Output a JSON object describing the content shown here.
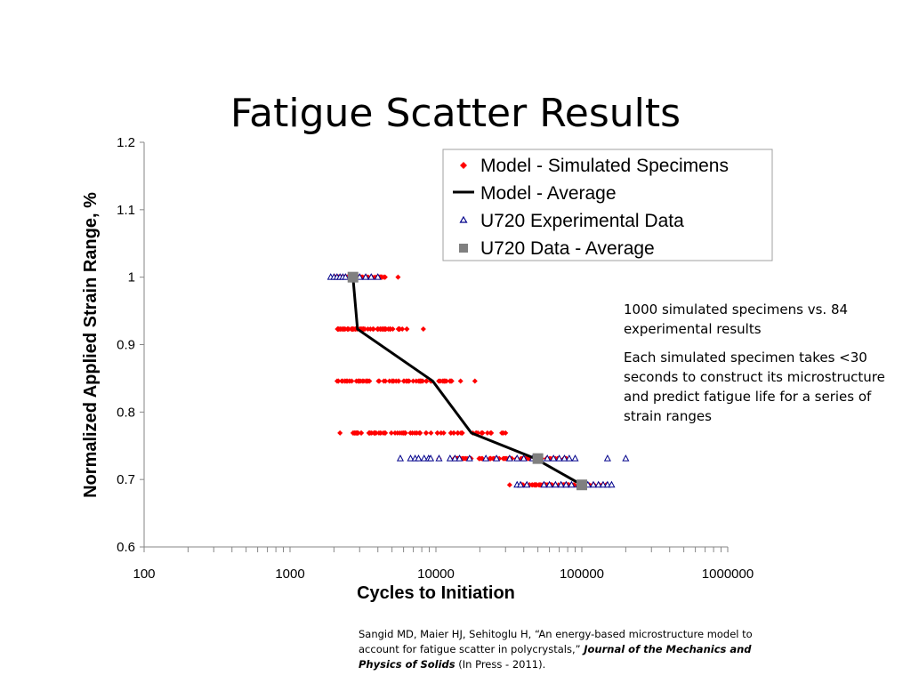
{
  "slide": {
    "title": "Fatigue Scatter Results",
    "notes": [
      "1000 simulated specimens vs. 84 experimental results",
      "Each simulated specimen takes <30 seconds to construct its microstructure and predict fatigue life for a series of strain ranges"
    ],
    "citation": {
      "prefix": "Sangid MD, Maier HJ, Sehitoglu H, “An energy-based microstructure model to account for fatigue scatter in polycrystals,”",
      "journal": "Journal of the Mechanics and Physics of Solids",
      "suffix": "(In Press - 2011)."
    }
  },
  "colors": {
    "model_points": "#ff0000",
    "model_average": "#000000",
    "experimental_points": "#00008b",
    "experimental_average": "#808080"
  },
  "chart_data": {
    "type": "scatter",
    "xlabel": "Cycles to Initiation",
    "ylabel": "Normalized Applied Strain Range, %",
    "x_scale": "log",
    "xlim": [
      100,
      1000000
    ],
    "ylim": [
      0.6,
      1.2
    ],
    "x_ticks": [
      "100",
      "1000",
      "10000",
      "100000",
      "1000000"
    ],
    "y_ticks": [
      "0.6",
      "0.7",
      "0.8",
      "0.9",
      "1",
      "1.1",
      "1.2"
    ],
    "legend_position": "top-right",
    "grid": false,
    "series": [
      {
        "name": "Model - Simulated Specimens",
        "kind": "points",
        "marker": "diamond",
        "groups": [
          {
            "y": 1.0,
            "x_min": 2000,
            "x_max": 4500,
            "outliers": [
              5500
            ]
          },
          {
            "y": 0.923,
            "x_min": 2100,
            "x_max": 6500,
            "outliers": [
              8200
            ]
          },
          {
            "y": 0.846,
            "x_min": 2100,
            "x_max": 15000,
            "outliers": [
              18500
            ]
          },
          {
            "y": 0.769,
            "x_min": 2700,
            "x_max": 33000,
            "outliers": [
              2200,
              3500
            ]
          },
          {
            "y": 0.731,
            "x_min": 13000,
            "x_max": 80000,
            "outliers": [
              9000,
              10500
            ]
          },
          {
            "y": 0.692,
            "x_min": 38000,
            "x_max": 150000,
            "outliers": [
              32000
            ]
          }
        ]
      },
      {
        "name": "Model - Average",
        "kind": "line",
        "x": [
          2700,
          2900,
          9500,
          17500,
          48000,
          100000
        ],
        "y": [
          1.0,
          0.923,
          0.846,
          0.769,
          0.731,
          0.692
        ]
      },
      {
        "name": "U720 Experimental Data",
        "kind": "points",
        "marker": "triangle",
        "x": [
          1900,
          2000,
          2100,
          2200,
          2300,
          2400,
          2700,
          3000,
          3300,
          3600,
          4000,
          5700,
          6700,
          7200,
          7600,
          8300,
          8900,
          9200,
          10500,
          12500,
          13500,
          14500,
          17000,
          22000,
          26000,
          32000,
          36000,
          40000,
          46000,
          52000,
          58000,
          64000,
          70000,
          76000,
          82000,
          90000,
          150000,
          200000,
          36000,
          38000,
          42000,
          55000,
          60000,
          66000,
          72000,
          78000,
          85000,
          95000,
          110000,
          120000,
          130000,
          140000,
          150000,
          160000
        ],
        "y": [
          1.0,
          1.0,
          1.0,
          1.0,
          1.0,
          1.0,
          1.0,
          1.0,
          1.0,
          1.0,
          1.0,
          0.731,
          0.731,
          0.731,
          0.731,
          0.731,
          0.731,
          0.731,
          0.731,
          0.731,
          0.731,
          0.731,
          0.731,
          0.731,
          0.731,
          0.731,
          0.731,
          0.731,
          0.731,
          0.731,
          0.731,
          0.731,
          0.731,
          0.731,
          0.731,
          0.731,
          0.731,
          0.731,
          0.692,
          0.692,
          0.692,
          0.692,
          0.692,
          0.692,
          0.692,
          0.692,
          0.692,
          0.692,
          0.692,
          0.692,
          0.692,
          0.692,
          0.692,
          0.692
        ]
      },
      {
        "name": "U720 Data - Average",
        "kind": "points",
        "marker": "square",
        "x": [
          2700,
          50000,
          100000
        ],
        "y": [
          1.0,
          0.731,
          0.692
        ]
      }
    ]
  }
}
